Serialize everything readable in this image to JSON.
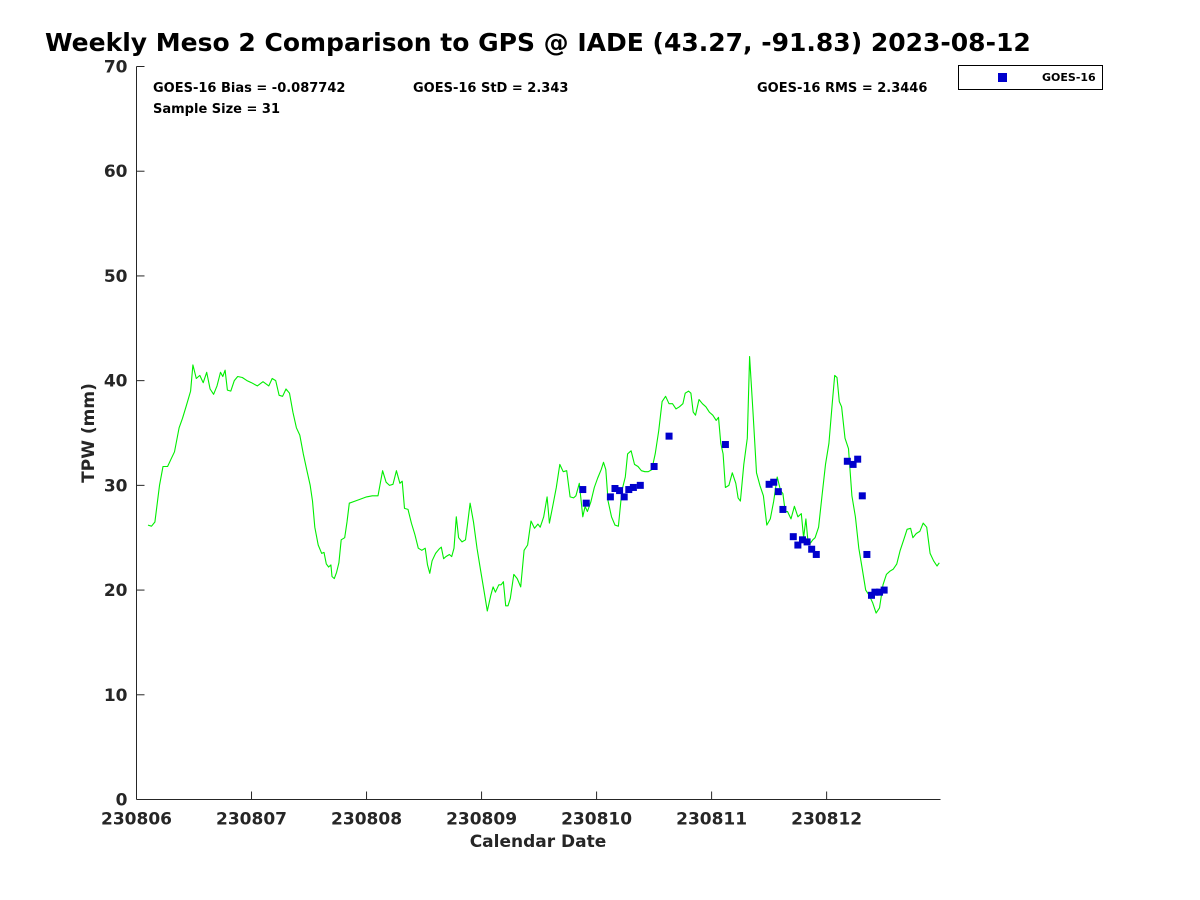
{
  "title": "Weekly Meso 2 Comparison to GPS @ IADE (43.27, -91.83) 2023-08-12",
  "stats": {
    "bias": "GOES-16 Bias = -0.087742",
    "std": "GOES-16 StD = 2.343",
    "rms": "GOES-16 RMS = 2.3446",
    "sample": "Sample Size = 31"
  },
  "legend": {
    "label": "GOES-16"
  },
  "colors": {
    "gps_line": "#00ee00",
    "goes_marker": "#0000cc"
  },
  "chart_data": {
    "type": "line",
    "xlabel": "Calendar Date",
    "ylabel": "TPW (mm)",
    "x_ticks": [
      "230806",
      "230807",
      "230808",
      "230809",
      "230810",
      "230811",
      "230812"
    ],
    "y_ticks": [
      "0",
      "10",
      "20",
      "30",
      "40",
      "50",
      "60",
      "70"
    ],
    "xlim": [
      0,
      6.99
    ],
    "ylim": [
      0,
      70
    ],
    "grid": false,
    "legend_position": "top-right, outside",
    "series": [
      {
        "type": "line",
        "points": [
          [
            0.1,
            26.2
          ],
          [
            0.13,
            26.1
          ],
          [
            0.16,
            26.5
          ],
          [
            0.2,
            30
          ],
          [
            0.23,
            31.8
          ],
          [
            0.27,
            31.8
          ],
          [
            0.3,
            32.5
          ],
          [
            0.33,
            33.2
          ],
          [
            0.37,
            35.5
          ],
          [
            0.4,
            36.4
          ],
          [
            0.43,
            37.5
          ],
          [
            0.47,
            39
          ],
          [
            0.49,
            41.5
          ],
          [
            0.52,
            40.2
          ],
          [
            0.55,
            40.5
          ],
          [
            0.58,
            39.8
          ],
          [
            0.61,
            40.8
          ],
          [
            0.64,
            39.2
          ],
          [
            0.67,
            38.7
          ],
          [
            0.7,
            39.5
          ],
          [
            0.73,
            40.8
          ],
          [
            0.75,
            40.4
          ],
          [
            0.77,
            41
          ],
          [
            0.79,
            39.1
          ],
          [
            0.82,
            39
          ],
          [
            0.85,
            40
          ],
          [
            0.88,
            40.4
          ],
          [
            0.92,
            40.3
          ],
          [
            0.96,
            40
          ],
          [
            1,
            39.8
          ],
          [
            1.05,
            39.5
          ],
          [
            1.1,
            39.9
          ],
          [
            1.15,
            39.5
          ],
          [
            1.18,
            40.2
          ],
          [
            1.21,
            40
          ],
          [
            1.24,
            38.6
          ],
          [
            1.27,
            38.5
          ],
          [
            1.3,
            39.2
          ],
          [
            1.33,
            38.8
          ],
          [
            1.36,
            37
          ],
          [
            1.39,
            35.5
          ],
          [
            1.42,
            34.8
          ],
          [
            1.45,
            33
          ],
          [
            1.48,
            31.5
          ],
          [
            1.51,
            30
          ],
          [
            1.53,
            28.5
          ],
          [
            1.55,
            26
          ],
          [
            1.58,
            24.3
          ],
          [
            1.61,
            23.5
          ],
          [
            1.63,
            23.6
          ],
          [
            1.65,
            22.5
          ],
          [
            1.67,
            22.2
          ],
          [
            1.69,
            22.4
          ],
          [
            1.7,
            21.3
          ],
          [
            1.72,
            21.1
          ],
          [
            1.74,
            21.7
          ],
          [
            1.76,
            22.6
          ],
          [
            1.78,
            24.8
          ],
          [
            1.81,
            25
          ],
          [
            1.83,
            26.5
          ],
          [
            1.85,
            28.3
          ],
          [
            1.9,
            28.5
          ],
          [
            1.95,
            28.7
          ],
          [
            2.0,
            28.9
          ],
          [
            2.05,
            29
          ],
          [
            2.1,
            29
          ],
          [
            2.14,
            31.4
          ],
          [
            2.17,
            30.3
          ],
          [
            2.2,
            30
          ],
          [
            2.23,
            30.1
          ],
          [
            2.26,
            31.4
          ],
          [
            2.29,
            30.2
          ],
          [
            2.31,
            30.4
          ],
          [
            2.33,
            27.8
          ],
          [
            2.36,
            27.7
          ],
          [
            2.39,
            26.4
          ],
          [
            2.42,
            25.3
          ],
          [
            2.45,
            24
          ],
          [
            2.48,
            23.8
          ],
          [
            2.51,
            24
          ],
          [
            2.53,
            22.4
          ],
          [
            2.55,
            21.6
          ],
          [
            2.57,
            22.8
          ],
          [
            2.6,
            23.5
          ],
          [
            2.63,
            23.9
          ],
          [
            2.65,
            24.1
          ],
          [
            2.67,
            23
          ],
          [
            2.69,
            23.2
          ],
          [
            2.72,
            23.4
          ],
          [
            2.74,
            23.2
          ],
          [
            2.76,
            24
          ],
          [
            2.78,
            27
          ],
          [
            2.8,
            25
          ],
          [
            2.83,
            24.6
          ],
          [
            2.86,
            24.8
          ],
          [
            2.88,
            26.5
          ],
          [
            2.9,
            28.3
          ],
          [
            2.93,
            26.5
          ],
          [
            2.96,
            24
          ],
          [
            2.99,
            22
          ],
          [
            3.02,
            20
          ],
          [
            3.05,
            18
          ],
          [
            3.08,
            19.5
          ],
          [
            3.1,
            20.3
          ],
          [
            3.12,
            19.8
          ],
          [
            3.15,
            20.5
          ],
          [
            3.17,
            20.5
          ],
          [
            3.19,
            20.8
          ],
          [
            3.21,
            18.5
          ],
          [
            3.23,
            18.5
          ],
          [
            3.25,
            19.2
          ],
          [
            3.28,
            21.5
          ],
          [
            3.31,
            21.1
          ],
          [
            3.34,
            20.3
          ],
          [
            3.37,
            23.8
          ],
          [
            3.4,
            24.3
          ],
          [
            3.43,
            26.6
          ],
          [
            3.46,
            25.9
          ],
          [
            3.49,
            26.3
          ],
          [
            3.51,
            26
          ],
          [
            3.54,
            27
          ],
          [
            3.57,
            28.9
          ],
          [
            3.59,
            26.4
          ],
          [
            3.62,
            28.1
          ],
          [
            3.65,
            29.8
          ],
          [
            3.68,
            32
          ],
          [
            3.71,
            31.3
          ],
          [
            3.74,
            31.4
          ],
          [
            3.77,
            28.9
          ],
          [
            3.8,
            28.8
          ],
          [
            3.82,
            29
          ],
          [
            3.85,
            30.2
          ],
          [
            3.88,
            27
          ],
          [
            3.9,
            28
          ],
          [
            3.92,
            27.5
          ],
          [
            3.95,
            28.4
          ],
          [
            3.98,
            29.8
          ],
          [
            4.01,
            30.7
          ],
          [
            4.04,
            31.5
          ],
          [
            4.06,
            32.2
          ],
          [
            4.08,
            31.5
          ],
          [
            4.1,
            28.5
          ],
          [
            4.13,
            27
          ],
          [
            4.16,
            26.2
          ],
          [
            4.19,
            26.1
          ],
          [
            4.22,
            29.5
          ],
          [
            4.25,
            30.8
          ],
          [
            4.27,
            33
          ],
          [
            4.3,
            33.3
          ],
          [
            4.33,
            32
          ],
          [
            4.36,
            31.8
          ],
          [
            4.39,
            31.4
          ],
          [
            4.42,
            31.3
          ],
          [
            4.45,
            31.3
          ],
          [
            4.48,
            31.5
          ],
          [
            4.51,
            33
          ],
          [
            4.54,
            35.2
          ],
          [
            4.57,
            38
          ],
          [
            4.6,
            38.5
          ],
          [
            4.63,
            37.8
          ],
          [
            4.66,
            37.8
          ],
          [
            4.69,
            37.3
          ],
          [
            4.72,
            37.5
          ],
          [
            4.75,
            37.8
          ],
          [
            4.77,
            38.8
          ],
          [
            4.8,
            39
          ],
          [
            4.82,
            38.8
          ],
          [
            4.84,
            37
          ],
          [
            4.86,
            36.7
          ],
          [
            4.89,
            38.2
          ],
          [
            4.92,
            37.8
          ],
          [
            4.95,
            37.5
          ],
          [
            4.98,
            37
          ],
          [
            5.01,
            36.7
          ],
          [
            5.04,
            36.2
          ],
          [
            5.06,
            36.5
          ],
          [
            5.08,
            34
          ],
          [
            5.1,
            33
          ],
          [
            5.12,
            29.8
          ],
          [
            5.15,
            30
          ],
          [
            5.18,
            31.2
          ],
          [
            5.21,
            30.2
          ],
          [
            5.23,
            28.8
          ],
          [
            5.25,
            28.5
          ],
          [
            5.28,
            32
          ],
          [
            5.31,
            34.5
          ],
          [
            5.33,
            42.3
          ],
          [
            5.36,
            37
          ],
          [
            5.39,
            31.2
          ],
          [
            5.42,
            30
          ],
          [
            5.45,
            29
          ],
          [
            5.48,
            26.2
          ],
          [
            5.51,
            26.8
          ],
          [
            5.54,
            28.5
          ],
          [
            5.57,
            30.8
          ],
          [
            5.6,
            29.5
          ],
          [
            5.62,
            29.2
          ],
          [
            5.64,
            27.5
          ],
          [
            5.66,
            27.5
          ],
          [
            5.69,
            26.8
          ],
          [
            5.72,
            28
          ],
          [
            5.75,
            27
          ],
          [
            5.78,
            27.3
          ],
          [
            5.8,
            25
          ],
          [
            5.82,
            26.8
          ],
          [
            5.84,
            24.4
          ],
          [
            5.86,
            24.5
          ],
          [
            5.88,
            24.8
          ],
          [
            5.9,
            25
          ],
          [
            5.93,
            26
          ],
          [
            5.96,
            29
          ],
          [
            5.99,
            32
          ],
          [
            6.02,
            34
          ],
          [
            6.05,
            38
          ],
          [
            6.07,
            40.5
          ],
          [
            6.09,
            40.3
          ],
          [
            6.11,
            38
          ],
          [
            6.13,
            37.5
          ],
          [
            6.16,
            34.5
          ],
          [
            6.19,
            33.5
          ],
          [
            6.22,
            29
          ],
          [
            6.25,
            27
          ],
          [
            6.28,
            24
          ],
          [
            6.31,
            22
          ],
          [
            6.34,
            20
          ],
          [
            6.37,
            19.5
          ],
          [
            6.4,
            18.8
          ],
          [
            6.43,
            17.8
          ],
          [
            6.46,
            18.3
          ],
          [
            6.49,
            20.5
          ],
          [
            6.52,
            21.5
          ],
          [
            6.55,
            21.8
          ],
          [
            6.58,
            22
          ],
          [
            6.61,
            22.5
          ],
          [
            6.64,
            23.8
          ],
          [
            6.67,
            24.8
          ],
          [
            6.7,
            25.8
          ],
          [
            6.73,
            25.9
          ],
          [
            6.75,
            25
          ],
          [
            6.78,
            25.4
          ],
          [
            6.81,
            25.6
          ],
          [
            6.84,
            26.4
          ],
          [
            6.87,
            26
          ],
          [
            6.9,
            23.5
          ],
          [
            6.93,
            22.8
          ],
          [
            6.96,
            22.3
          ],
          [
            6.98,
            22.6
          ]
        ]
      },
      {
        "name": "GOES-16",
        "type": "scatter",
        "points": [
          [
            3.88,
            29.6
          ],
          [
            3.91,
            28.3
          ],
          [
            4.12,
            28.9
          ],
          [
            4.16,
            29.7
          ],
          [
            4.2,
            29.5
          ],
          [
            4.24,
            28.9
          ],
          [
            4.28,
            29.6
          ],
          [
            4.32,
            29.8
          ],
          [
            4.38,
            30
          ],
          [
            4.5,
            31.8
          ],
          [
            4.63,
            34.7
          ],
          [
            5.12,
            33.9
          ],
          [
            5.5,
            30.1
          ],
          [
            5.54,
            30.3
          ],
          [
            5.58,
            29.4
          ],
          [
            5.62,
            27.7
          ],
          [
            5.71,
            25.1
          ],
          [
            5.75,
            24.3
          ],
          [
            5.79,
            24.8
          ],
          [
            5.83,
            24.6
          ],
          [
            5.87,
            23.9
          ],
          [
            5.91,
            23.4
          ],
          [
            6.18,
            32.3
          ],
          [
            6.23,
            32
          ],
          [
            6.27,
            32.5
          ],
          [
            6.31,
            29
          ],
          [
            6.35,
            23.4
          ],
          [
            6.39,
            19.5
          ],
          [
            6.42,
            19.8
          ],
          [
            6.46,
            19.8
          ],
          [
            6.5,
            20
          ]
        ]
      }
    ]
  }
}
